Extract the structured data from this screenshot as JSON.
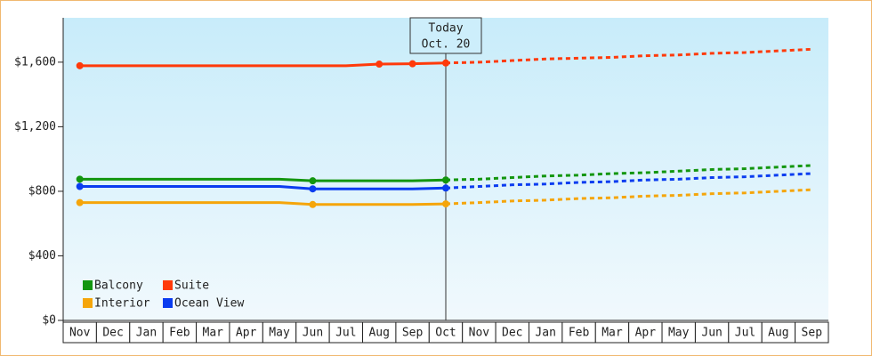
{
  "chart_data": {
    "type": "line",
    "categories": [
      "Nov",
      "Dec",
      "Jan",
      "Feb",
      "Mar",
      "Apr",
      "May",
      "Jun",
      "Jul",
      "Aug",
      "Sep",
      "Oct",
      "Nov",
      "Dec",
      "Jan",
      "Feb",
      "Mar",
      "Apr",
      "May",
      "Jun",
      "Jul",
      "Aug",
      "Sep"
    ],
    "series": [
      {
        "name": "Balcony",
        "color": "#13960f",
        "values": [
          875,
          875,
          875,
          875,
          875,
          875,
          875,
          865,
          865,
          865,
          865,
          870,
          875,
          885,
          895,
          900,
          910,
          915,
          925,
          935,
          940,
          950,
          960
        ]
      },
      {
        "name": "Suite",
        "color": "#ff3a0a",
        "values": [
          1578,
          1578,
          1578,
          1578,
          1578,
          1578,
          1578,
          1578,
          1578,
          1588,
          1590,
          1595,
          1600,
          1610,
          1620,
          1625,
          1630,
          1640,
          1645,
          1655,
          1660,
          1670,
          1680
        ]
      },
      {
        "name": "Interior",
        "color": "#f5a50a",
        "values": [
          730,
          730,
          730,
          730,
          730,
          730,
          730,
          718,
          718,
          718,
          718,
          722,
          730,
          740,
          745,
          755,
          760,
          770,
          775,
          785,
          790,
          800,
          810
        ]
      },
      {
        "name": "Ocean View",
        "color": "#0a3cf0",
        "values": [
          830,
          830,
          830,
          830,
          830,
          830,
          830,
          815,
          815,
          815,
          815,
          820,
          830,
          840,
          845,
          855,
          860,
          870,
          875,
          885,
          890,
          900,
          910
        ]
      }
    ],
    "forecast_from": 11,
    "annotation": {
      "title": "Today",
      "date": "Oct. 20"
    },
    "ylim": [
      0,
      1875
    ],
    "yticks": [
      {
        "value": 0,
        "label": "$0"
      },
      {
        "value": 400,
        "label": "$400"
      },
      {
        "value": 800,
        "label": "$800"
      },
      {
        "value": 1200,
        "label": "$1,200"
      },
      {
        "value": 1600,
        "label": "$1,600"
      }
    ],
    "legend": "bottom-left"
  }
}
